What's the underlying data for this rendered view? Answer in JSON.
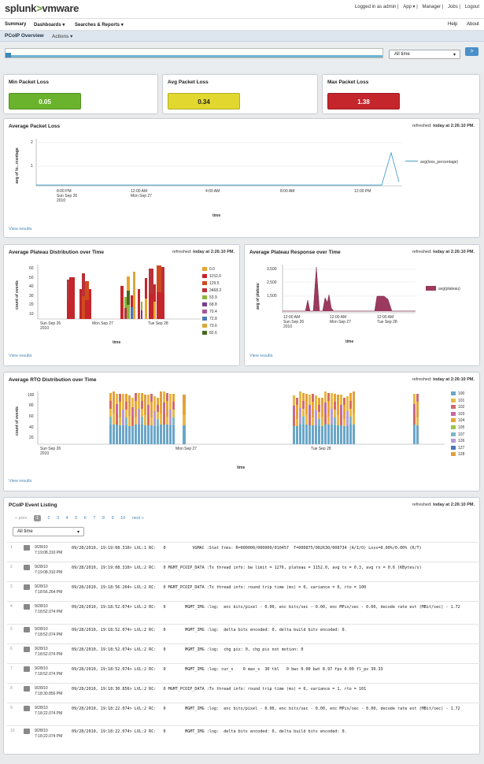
{
  "header": {
    "logo_a": "splunk",
    "logo_b": ">",
    "logo_c": "vmware",
    "logo_d": "·",
    "links": [
      "Logged in as admin",
      "App ▾",
      "Manager",
      "Jobs",
      "Logout"
    ]
  },
  "menu": {
    "summary": "Summary",
    "dashboards": "Dashboards ▾",
    "searches": "Searches & Reports ▾",
    "help": "Help",
    "about": "About"
  },
  "subbar": {
    "title": "PCoIP Overview",
    "actions": "Actions ▾"
  },
  "timebar": {
    "range": "All time",
    "go": ">"
  },
  "kpis": [
    {
      "title": "Min Packet Loss",
      "value": "0.05",
      "color": "#6ab42d"
    },
    {
      "title": "Avg Packet Loss",
      "value": "0.34",
      "color": "#e2d72f"
    },
    {
      "title": "Max Packet Loss",
      "value": "1.38",
      "color": "#c4262b"
    }
  ],
  "common": {
    "view_results": "View results",
    "refreshed_label": "refreshed:",
    "refreshed_time": "today at 2:26:10 PM.",
    "x_axis": "time"
  },
  "packet_loss_chart": {
    "title": "Average Packet Loss",
    "ylabel": "avg of lo...rcentage",
    "yticks": [
      "2",
      "1"
    ],
    "xticks": [
      "8:00 PM\nSun Sep 26\n2010",
      "12:00 AM\nMon Sep 27",
      "4:00 AM",
      "8:00 AM",
      "12:00 PM"
    ],
    "legend": "avg(loss_percentage)",
    "color": "#4aa0c8"
  },
  "plateau_dist": {
    "title": "Average Plateau Distribution over Time",
    "ylabel": "count of events",
    "yticks": [
      "60",
      "50",
      "40",
      "30",
      "20",
      "10"
    ],
    "xticks": [
      "Sun Sep 26\n2010",
      "Mon Sep 27",
      "Tue Sep 28"
    ],
    "legend": [
      {
        "label": "0.0",
        "color": "#e8a430"
      },
      {
        "label": "1152.0",
        "color": "#c4262b"
      },
      {
        "label": "129.5",
        "color": "#d04a1e"
      },
      {
        "label": "3468.2",
        "color": "#b8323a"
      },
      {
        "label": "53.9",
        "color": "#8ab43c"
      },
      {
        "label": "68.8",
        "color": "#7a3a92"
      },
      {
        "label": "70.4",
        "color": "#a9569a"
      },
      {
        "label": "72.8",
        "color": "#4a78b8"
      },
      {
        "label": "73.6",
        "color": "#d8a83a"
      },
      {
        "label": "82.6",
        "color": "#466a20"
      }
    ]
  },
  "plateau_resp": {
    "title": "Average Plateau Response over Time",
    "ylabel": "avg of plateau",
    "yticks": [
      "3,500",
      "2,500",
      "1,500"
    ],
    "xticks": [
      "12:00 AM\nSun Sep 26\n2010",
      "12:00 AM\nMon Sep 27",
      "12:00 AM\nTue Sep 28"
    ],
    "legend": "avg(plateau)",
    "color": "#9b3a5e"
  },
  "rto_dist": {
    "title": "Average RTO Distribution over Time",
    "ylabel": "count of events",
    "yticks": [
      "100",
      "80",
      "60",
      "40",
      "20"
    ],
    "xticks": [
      "Sun Sep 26\n2010",
      "Mon Sep 27",
      "Tue Sep 28"
    ],
    "legend": [
      {
        "label": "100",
        "color": "#6aa6c8"
      },
      {
        "label": "101",
        "color": "#e8b846"
      },
      {
        "label": "102",
        "color": "#d46a6a"
      },
      {
        "label": "103",
        "color": "#c46aa0"
      },
      {
        "label": "104",
        "color": "#e8a430"
      },
      {
        "label": "105",
        "color": "#9ac646"
      },
      {
        "label": "107",
        "color": "#7ab8c8"
      },
      {
        "label": "126",
        "color": "#b89ad4"
      },
      {
        "label": "127",
        "color": "#4a78b8"
      },
      {
        "label": "128",
        "color": "#e0a040"
      }
    ]
  },
  "events": {
    "title": "PCoIP Event Listing",
    "pager": {
      "prev": "« prev",
      "pages": [
        "1",
        "2",
        "3",
        "4",
        "5",
        "6",
        "7",
        "8",
        "9",
        "10"
      ],
      "next": "next »"
    },
    "range": "All time",
    "rows": [
      {
        "n": "1",
        "ts": "9/28/10\n7:19:08.310 PM",
        "raw": "09/28/2010, 19:19:08.310> LVL:1 RC:   0           VGMAC :Stat frms: R=000000/000000/010457  T=000875/002630/008734 (A/I/O) Loss=0.00%/0.00% (R/T)"
      },
      {
        "n": "2",
        "ts": "9/28/10\n7:19:08.310 PM",
        "raw": "09/28/2010, 19:19:08.310> LVL:2 RC:   0 MGMT_PCOIP_DATA :Tx thread info: bw limit = 1276, plateau = 1152.0, avg tx = 0.3, avg rx = 0.6 (KBytes/s)"
      },
      {
        "n": "3",
        "ts": "9/28/10\n7:18:56.264 PM",
        "raw": "09/28/2010, 19:18:56.264> LVL:2 RC:   0 MGMT_PCOIP_DATA :Tx thread info: round trip time (ms) = 0, variance = 0, rto = 100"
      },
      {
        "n": "4",
        "ts": "9/28/10\n7:18:52.074 PM",
        "raw": "09/28/2010, 19:18:52.074> LVL:2 RC:   0        MGMT_IMG :log:  enc bits/pixel - 0.00, enc bits/sec - 0.00, enc MPix/sec - 0.00, decode rate est (MBit/sec) - 1.72"
      },
      {
        "n": "5",
        "ts": "9/28/10\n7:18:52.074 PM",
        "raw": "09/28/2010, 19:18:52.074> LVL:2 RC:   0        MGMT_IMG :log:  delta bits encoded: 0, delta build bits encoded: 0."
      },
      {
        "n": "6",
        "ts": "9/28/10\n7:18:52.074 PM",
        "raw": "09/28/2010, 19:18:52.074> LVL:2 RC:   0        MGMT_IMG :log:  chg pix: 0, chg pix not motion: 0"
      },
      {
        "n": "7",
        "ts": "9/28/10\n7:18:52.074 PM",
        "raw": "09/28/2010, 19:18:52.074> LVL:2 RC:   0        MGMT_IMG :log: cur_s    0 max_s  30 tbl   0 bwc 0.00 bwt 8.97 fps 0.00 fl_ps 30.33"
      },
      {
        "n": "8",
        "ts": "9/28/10\n7:18:30.856 PM",
        "raw": "09/28/2010, 19:18:30.856> LVL:2 RC:   0 MGMT_PCOIP_DATA :Tx thread info: round trip time (ms) = 0, variance = 1, rto = 101"
      },
      {
        "n": "9",
        "ts": "9/28/10\n7:18:22.074 PM",
        "raw": "09/28/2010, 19:18:22.074> LVL:2 RC:   0        MGMT_IMG :log:  enc bits/pixel - 0.00, enc bits/sec - 0.00, enc MPix/sec - 0.00, decode rate est (MBit/sec) - 1.72"
      },
      {
        "n": "10",
        "ts": "9/28/10\n7:18:22.074 PM",
        "raw": "09/28/2010, 19:18:22.074> LVL:2 RC:   0        MGMT_IMG :log:  delta bits encoded: 0, delta build bits encoded: 0."
      }
    ]
  }
}
